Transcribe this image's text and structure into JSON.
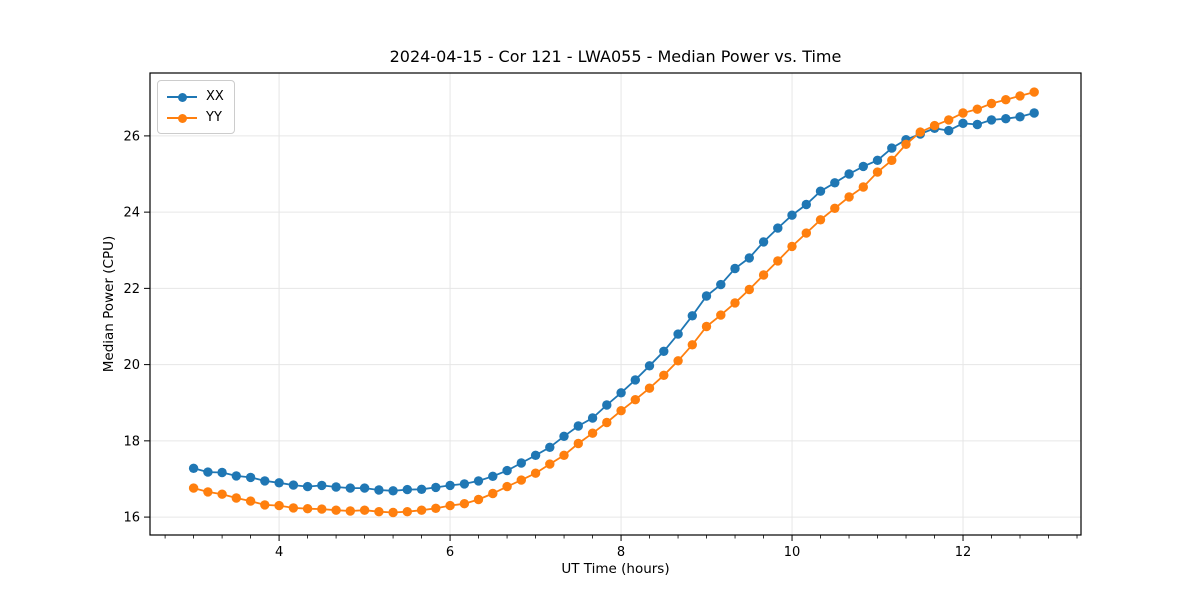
{
  "chart_data": {
    "type": "line",
    "title": "2024-04-15 - Cor 121 - LWA055 - Median Power vs. Time",
    "xlabel": "UT Time (hours)",
    "ylabel": "Median Power (CPU)",
    "xlim": [
      2.49,
      13.38
    ],
    "ylim": [
      15.53,
      27.65
    ],
    "xticks": [
      4,
      6,
      8,
      10,
      12
    ],
    "yticks": [
      16,
      18,
      20,
      22,
      24,
      26
    ],
    "x_minor_step": 0.33333,
    "grid": true,
    "grid_color": "#e6e6e6",
    "legend_position": "upper left",
    "x": [
      3.0,
      3.167,
      3.333,
      3.5,
      3.667,
      3.833,
      4.0,
      4.167,
      4.333,
      4.5,
      4.667,
      4.833,
      5.0,
      5.167,
      5.333,
      5.5,
      5.667,
      5.833,
      6.0,
      6.167,
      6.333,
      6.5,
      6.667,
      6.833,
      7.0,
      7.167,
      7.333,
      7.5,
      7.667,
      7.833,
      8.0,
      8.167,
      8.333,
      8.5,
      8.667,
      8.833,
      9.0,
      9.167,
      9.333,
      9.5,
      9.667,
      9.833,
      10.0,
      10.167,
      10.333,
      10.5,
      10.667,
      10.833,
      11.0,
      11.167,
      11.333,
      11.5,
      11.667,
      11.833,
      12.0,
      12.167,
      12.333,
      12.5,
      12.667,
      12.833
    ],
    "series": [
      {
        "name": "XX",
        "color": "#1f77b4",
        "values": [
          17.28,
          17.18,
          17.17,
          17.08,
          17.04,
          16.95,
          16.9,
          16.84,
          16.8,
          16.83,
          16.79,
          16.76,
          16.76,
          16.71,
          16.69,
          16.72,
          16.73,
          16.78,
          16.83,
          16.87,
          16.95,
          17.07,
          17.22,
          17.42,
          17.62,
          17.83,
          18.12,
          18.39,
          18.6,
          18.94,
          19.26,
          19.6,
          19.97,
          20.35,
          20.8,
          21.28,
          21.8,
          22.1,
          22.52,
          22.8,
          23.22,
          23.58,
          23.92,
          24.2,
          24.55,
          24.77,
          25.0,
          25.2,
          25.36,
          25.68,
          25.9,
          26.05,
          26.2,
          26.14,
          26.33,
          26.3,
          26.42,
          26.45,
          26.5,
          26.6
        ]
      },
      {
        "name": "YY",
        "color": "#ff7f0e",
        "values": [
          16.76,
          16.66,
          16.6,
          16.5,
          16.42,
          16.32,
          16.3,
          16.24,
          16.22,
          16.21,
          16.18,
          16.16,
          16.18,
          16.14,
          16.12,
          16.14,
          16.18,
          16.23,
          16.3,
          16.35,
          16.46,
          16.62,
          16.8,
          16.97,
          17.15,
          17.39,
          17.62,
          17.93,
          18.2,
          18.48,
          18.79,
          19.08,
          19.38,
          19.72,
          20.1,
          20.52,
          21.0,
          21.3,
          21.62,
          21.97,
          22.35,
          22.72,
          23.1,
          23.45,
          23.8,
          24.1,
          24.4,
          24.66,
          25.05,
          25.36,
          25.78,
          26.1,
          26.27,
          26.42,
          26.6,
          26.7,
          26.85,
          26.95,
          27.05,
          27.15
        ]
      }
    ]
  }
}
